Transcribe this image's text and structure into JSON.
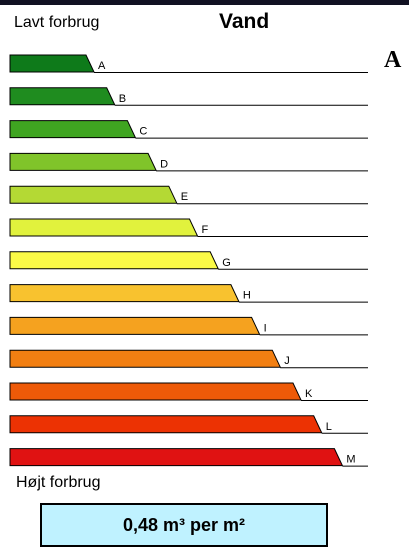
{
  "header": {
    "low_label": "Lavt forbrug",
    "title": "Vand",
    "rating": "A"
  },
  "footer": {
    "high_label": "Højt forbrug",
    "value": "0,48 m³ per m²"
  },
  "scale": [
    {
      "letter": "A",
      "color": "#0e7a1a"
    },
    {
      "letter": "B",
      "color": "#1f8c1f"
    },
    {
      "letter": "C",
      "color": "#3fa521"
    },
    {
      "letter": "D",
      "color": "#80c42a"
    },
    {
      "letter": "E",
      "color": "#b4d934"
    },
    {
      "letter": "F",
      "color": "#e1f23d"
    },
    {
      "letter": "G",
      "color": "#fbfa47"
    },
    {
      "letter": "H",
      "color": "#f8c22f"
    },
    {
      "letter": "I",
      "color": "#f5a21f"
    },
    {
      "letter": "J",
      "color": "#f27f12"
    },
    {
      "letter": "K",
      "color": "#ee5a08"
    },
    {
      "letter": "L",
      "color": "#ec3203"
    },
    {
      "letter": "M",
      "color": "#e01212"
    }
  ]
}
